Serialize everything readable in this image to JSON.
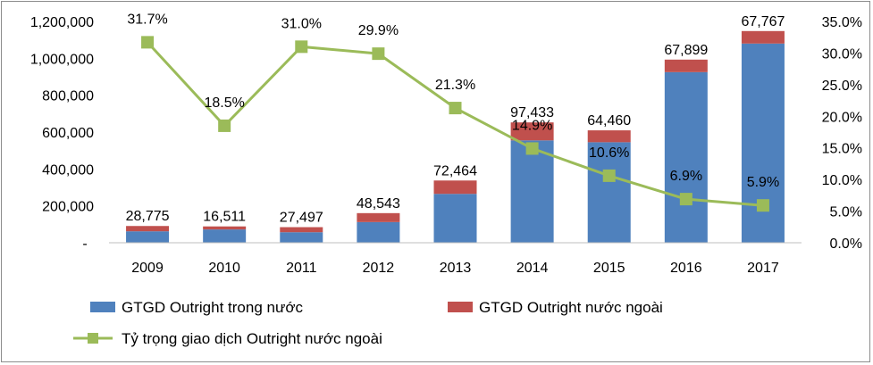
{
  "chart_data": {
    "type": "bar+line",
    "categories": [
      "2009",
      "2010",
      "2011",
      "2012",
      "2013",
      "2014",
      "2015",
      "2016",
      "2017"
    ],
    "series": [
      {
        "name": "GTGD Outright trong nước",
        "type": "stacked-bar",
        "axis": "left",
        "color": "#4f81bd",
        "values": [
          62000,
          72000,
          57000,
          112000,
          265000,
          555000,
          545000,
          925000,
          1080000
        ]
      },
      {
        "name": "GTGD Outright nước ngoài",
        "type": "stacked-bar",
        "axis": "left",
        "color": "#c0504d",
        "values": [
          28775,
          16511,
          27497,
          48543,
          72464,
          97433,
          64460,
          67899,
          67767
        ],
        "labels": [
          "28,775",
          "16,511",
          "27,497",
          "48,543",
          "72,464",
          "97,433",
          "64,460",
          "67,899",
          "67,767"
        ]
      },
      {
        "name": "Tỷ trọng giao dịch Outright nước ngoài",
        "type": "line",
        "axis": "right",
        "color": "#9bbb59",
        "values": [
          31.7,
          18.5,
          31.0,
          29.9,
          21.3,
          14.9,
          10.6,
          6.9,
          5.9
        ],
        "labels": [
          "31.7%",
          "18.5%",
          "31.0%",
          "29.9%",
          "21.3%",
          "14.9%",
          "10.6%",
          "6.9%",
          "5.9%"
        ]
      }
    ],
    "y_left": {
      "min": 0,
      "max": 1200000,
      "ticks": [
        0,
        200000,
        400000,
        600000,
        800000,
        1000000,
        1200000
      ],
      "tick_labels": [
        "-",
        "200,000",
        "400,000",
        "600,000",
        "800,000",
        "1,000,000",
        "1,200,000"
      ]
    },
    "y_right": {
      "min": 0,
      "max": 35,
      "ticks": [
        0,
        5,
        10,
        15,
        20,
        25,
        30,
        35
      ],
      "tick_labels": [
        "0.0%",
        "5.0%",
        "10.0%",
        "15.0%",
        "20.0%",
        "25.0%",
        "30.0%",
        "35.0%"
      ]
    },
    "legend": {
      "position": "bottom",
      "entries": [
        "GTGD Outright trong nước",
        "GTGD Outright nước ngoài",
        "Tỷ trọng giao dịch Outright nước ngoài"
      ]
    },
    "title": "",
    "xlabel": "",
    "ylabel": ""
  }
}
